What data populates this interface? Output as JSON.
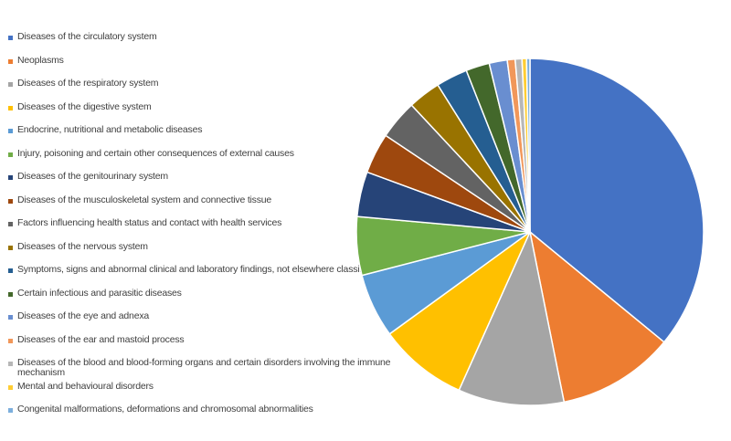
{
  "chart_data": {
    "type": "pie",
    "title": "",
    "legend_position": "left",
    "series": [
      {
        "name": "",
        "labels": [
          "Diseases of the circulatory system",
          "Neoplasms",
          "Diseases of the respiratory system",
          "Diseases of the digestive system",
          "Endocrine, nutritional and metabolic diseases",
          "Injury, poisoning and certain other consequences of external causes",
          "Diseases of the genitourinary system",
          "Diseases of the musculoskeletal system and connective tissue",
          "Factors influencing health status and contact with health services",
          "Diseases of the nervous system",
          "Symptoms, signs and abnormal clinical and laboratory findings, not elsewhere classified",
          "Certain infectious and parasitic diseases",
          "Diseases of the eye and adnexa",
          "Diseases of the ear and mastoid process",
          "Diseases of the blood and blood-forming organs and certain disorders involving the immune mechanism",
          "Mental and behavioural disorders",
          "Congenital malformations, deformations and chromosomal abnormalities"
        ],
        "values": [
          34.3,
          10.4,
          9.4,
          7.9,
          5.7,
          5.2,
          4.0,
          3.6,
          3.5,
          2.9,
          2.8,
          2.1,
          1.6,
          0.7,
          0.6,
          0.4,
          0.3
        ],
        "colors": [
          "#4472C4",
          "#ED7D31",
          "#A5A5A5",
          "#FFC000",
          "#5B9BD5",
          "#70AD47",
          "#264478",
          "#9E480E",
          "#636363",
          "#997300",
          "#255E91",
          "#43682B",
          "#698ED0",
          "#F1975A",
          "#B7B7B7",
          "#FFCD33",
          "#7CAFDD"
        ]
      }
    ]
  }
}
